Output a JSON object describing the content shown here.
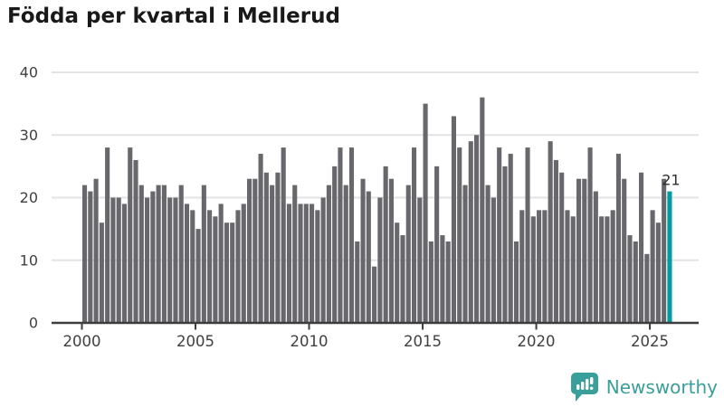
{
  "title": "Födda per kvartal i Mellerud",
  "chart_data": {
    "type": "bar",
    "title": "Födda per kvartal i Mellerud",
    "x_unit": "quarter",
    "x_range": "2000 Q1 - 2025 Q4",
    "x_tick_labels": [
      "2000",
      "2005",
      "2010",
      "2015",
      "2020",
      "2025"
    ],
    "y_ticks": [
      0,
      10,
      20,
      30,
      40
    ],
    "ylim": [
      0,
      40
    ],
    "grid": true,
    "legend": "none",
    "values": [
      22,
      21,
      23,
      16,
      28,
      20,
      20,
      19,
      28,
      26,
      22,
      20,
      21,
      22,
      22,
      20,
      20,
      22,
      19,
      18,
      15,
      22,
      18,
      17,
      19,
      16,
      16,
      18,
      19,
      23,
      23,
      27,
      24,
      22,
      24,
      28,
      19,
      22,
      19,
      19,
      19,
      18,
      20,
      22,
      25,
      28,
      22,
      28,
      13,
      23,
      21,
      9,
      20,
      25,
      23,
      16,
      14,
      22,
      28,
      20,
      35,
      13,
      25,
      14,
      13,
      33,
      28,
      22,
      29,
      30,
      36,
      22,
      20,
      28,
      25,
      27,
      13,
      18,
      28,
      17,
      18,
      18,
      29,
      26,
      24,
      18,
      17,
      23,
      23,
      28,
      21,
      17,
      17,
      18,
      27,
      23,
      14,
      13,
      24,
      11,
      18,
      16,
      23,
      21
    ],
    "highlight_index": 103,
    "highlight_label": "21"
  },
  "colors": {
    "bar": "#67676c",
    "highlight_bar": "#009c9e",
    "grid_line": "#e3e3e3",
    "axis_line": "#3d3d3d",
    "tick_text": "#3f3f3f",
    "title_text": "#191919",
    "value_label_text": "#2d2d2d",
    "logo_teal": "#3a9e9a",
    "background": "#ffffff"
  },
  "logo": {
    "text": "Newsworthy",
    "icon": "chart-speech-bubble-icon"
  }
}
